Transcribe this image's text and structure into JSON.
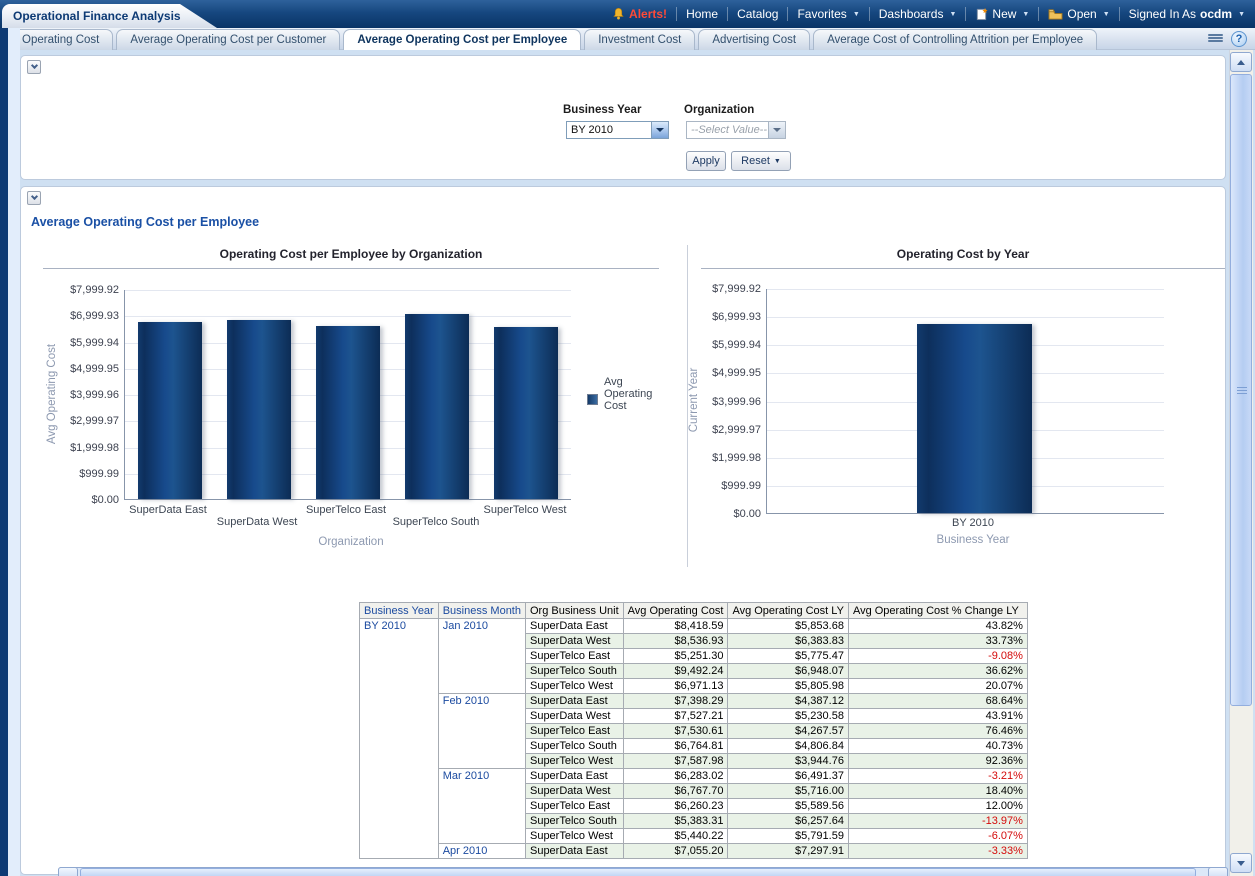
{
  "header": {
    "brand": "Operational Finance Analysis",
    "alerts_label": "Alerts!",
    "nav": [
      "Home",
      "Catalog",
      "Favorites",
      "Dashboards"
    ],
    "new_label": "New",
    "open_label": "Open",
    "signed_in_label": "Signed In As",
    "username": "ocdm"
  },
  "tabbar": {
    "tabs": [
      "Operating Cost",
      "Average Operating Cost per Customer",
      "Average Operating Cost per Employee",
      "Investment Cost",
      "Advertising Cost",
      "Average Cost of Controlling Attrition per Employee"
    ],
    "active_index": 2
  },
  "icons": {
    "help": "?"
  },
  "filters": {
    "business_year_label": "Business Year",
    "business_year_value": "BY 2010",
    "organization_label": "Organization",
    "organization_value": "--Select Value--",
    "apply_label": "Apply",
    "reset_label": "Reset"
  },
  "section_title": "Average Operating Cost per Employee",
  "chart_data": [
    {
      "type": "bar",
      "title": "Operating Cost per Employee by Organization",
      "ylabel": "Avg Operating Cost",
      "xlabel": "Organization",
      "legend": [
        "Avg Operating Cost"
      ],
      "yticks": [
        "$7,999.92",
        "$6,999.93",
        "$5,999.94",
        "$4,999.95",
        "$3,999.96",
        "$2,999.97",
        "$1,999.98",
        "$999.99",
        "$0.00"
      ],
      "ylim": [
        0,
        7999.92
      ],
      "grid": true,
      "categories": [
        "SuperData East",
        "SuperData West",
        "SuperTelco East",
        "SuperTelco South",
        "SuperTelco West"
      ],
      "values": [
        6740,
        6815,
        6590,
        7040,
        6560
      ]
    },
    {
      "type": "bar",
      "title": "Operating Cost by Year",
      "ylabel": "Current Year",
      "xlabel": "Business Year",
      "yticks": [
        "$7,999.92",
        "$6,999.93",
        "$5,999.94",
        "$4,999.95",
        "$3,999.96",
        "$2,999.97",
        "$1,999.98",
        "$999.99",
        "$0.00"
      ],
      "ylim": [
        0,
        7999.92
      ],
      "grid": true,
      "categories": [
        "BY 2010"
      ],
      "values": [
        6720
      ]
    }
  ],
  "table": {
    "headers": [
      "Business Year",
      "Business Month",
      "Org Business Unit",
      "Avg Operating Cost",
      "Avg Operating Cost LY",
      "Avg Operating Cost % Change LY"
    ],
    "year": "BY 2010",
    "groups": [
      {
        "month": "Jan 2010",
        "rows": [
          [
            "SuperData East",
            "$8,418.59",
            "$5,853.68",
            "43.82%"
          ],
          [
            "SuperData West",
            "$8,536.93",
            "$6,383.83",
            "33.73%"
          ],
          [
            "SuperTelco East",
            "$5,251.30",
            "$5,775.47",
            "-9.08%"
          ],
          [
            "SuperTelco South",
            "$9,492.24",
            "$6,948.07",
            "36.62%"
          ],
          [
            "SuperTelco West",
            "$6,971.13",
            "$5,805.98",
            "20.07%"
          ]
        ]
      },
      {
        "month": "Feb 2010",
        "rows": [
          [
            "SuperData East",
            "$7,398.29",
            "$4,387.12",
            "68.64%"
          ],
          [
            "SuperData West",
            "$7,527.21",
            "$5,230.58",
            "43.91%"
          ],
          [
            "SuperTelco East",
            "$7,530.61",
            "$4,267.57",
            "76.46%"
          ],
          [
            "SuperTelco South",
            "$6,764.81",
            "$4,806.84",
            "40.73%"
          ],
          [
            "SuperTelco West",
            "$7,587.98",
            "$3,944.76",
            "92.36%"
          ]
        ]
      },
      {
        "month": "Mar 2010",
        "rows": [
          [
            "SuperData East",
            "$6,283.02",
            "$6,491.37",
            "-3.21%"
          ],
          [
            "SuperData West",
            "$6,767.70",
            "$5,716.00",
            "18.40%"
          ],
          [
            "SuperTelco East",
            "$6,260.23",
            "$5,589.56",
            "12.00%"
          ],
          [
            "SuperTelco South",
            "$5,383.31",
            "$6,257.64",
            "-13.97%"
          ],
          [
            "SuperTelco West",
            "$5,440.22",
            "$5,791.59",
            "-6.07%"
          ]
        ]
      },
      {
        "month": "Apr 2010",
        "rows": [
          [
            "SuperData East",
            "$7,055.20",
            "$7,297.91",
            "-3.33%"
          ]
        ]
      }
    ]
  },
  "colors": {
    "bar": "#123a6d",
    "header_navy": "#16477f",
    "section_title_blue": "#1a50a5",
    "link_navy": "#1c4ba0",
    "negative_red": "#d40b0b",
    "row_alt_green": "#e9f2e7"
  }
}
